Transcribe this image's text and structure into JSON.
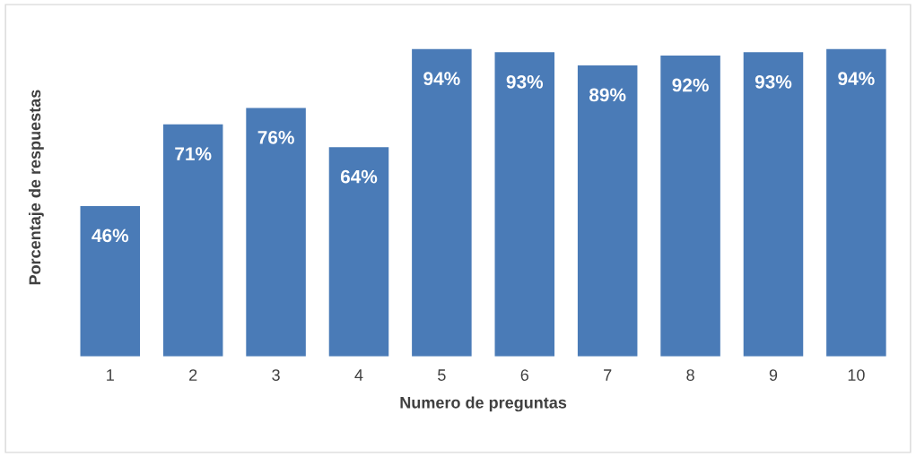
{
  "chart_data": {
    "type": "bar",
    "xlabel": "Numero de preguntas",
    "ylabel": "Porcentaje de respuestas",
    "categories": [
      "1",
      "2",
      "3",
      "4",
      "5",
      "6",
      "7",
      "8",
      "9",
      "10"
    ],
    "values": [
      46,
      71,
      76,
      64,
      94,
      93,
      89,
      92,
      93,
      94
    ],
    "value_labels": [
      "46%",
      "71%",
      "76%",
      "64%",
      "94%",
      "93%",
      "89%",
      "92%",
      "93%",
      "94%"
    ],
    "color": "#4a7bb7",
    "tick_labels": "x",
    "grid": false,
    "legend": false
  }
}
